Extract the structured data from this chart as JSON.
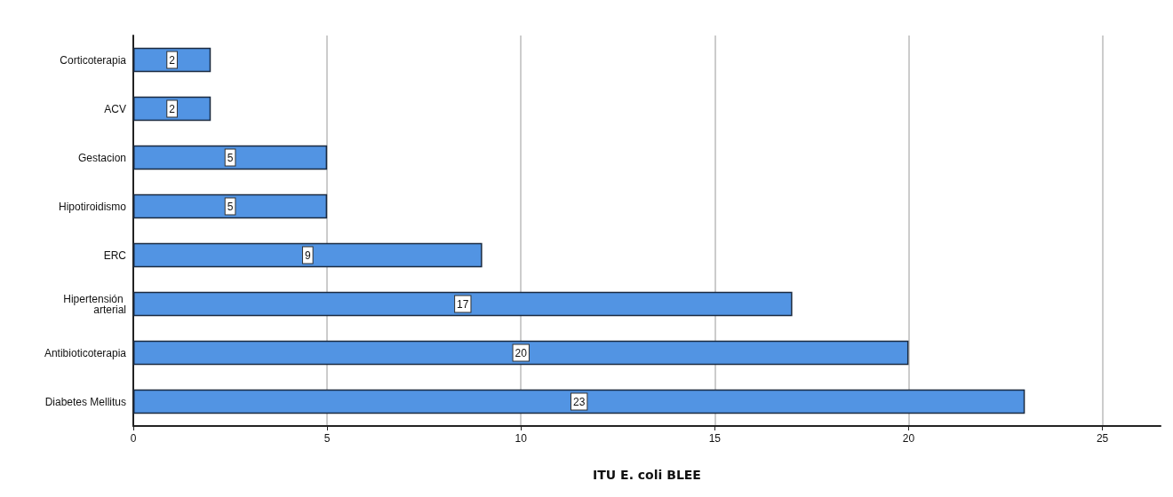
{
  "chart_data": {
    "type": "bar",
    "orientation": "horizontal",
    "xlabel": "ITU E. coli BLEE",
    "categories": [
      "Corticoterapia",
      "ACV",
      "Gestacion",
      "Hipotiroidismo",
      "ERC",
      "Hipertensión arterial",
      "Antibioticoterapia",
      "Diabetes Mellitus"
    ],
    "values": [
      2,
      2,
      5,
      5,
      9,
      17,
      20,
      23
    ],
    "color": "#5294e3",
    "xlim": [
      0,
      26.5
    ],
    "xticks": [
      0,
      5,
      10,
      15,
      20,
      25
    ],
    "grid": "x",
    "data_labels": true
  }
}
